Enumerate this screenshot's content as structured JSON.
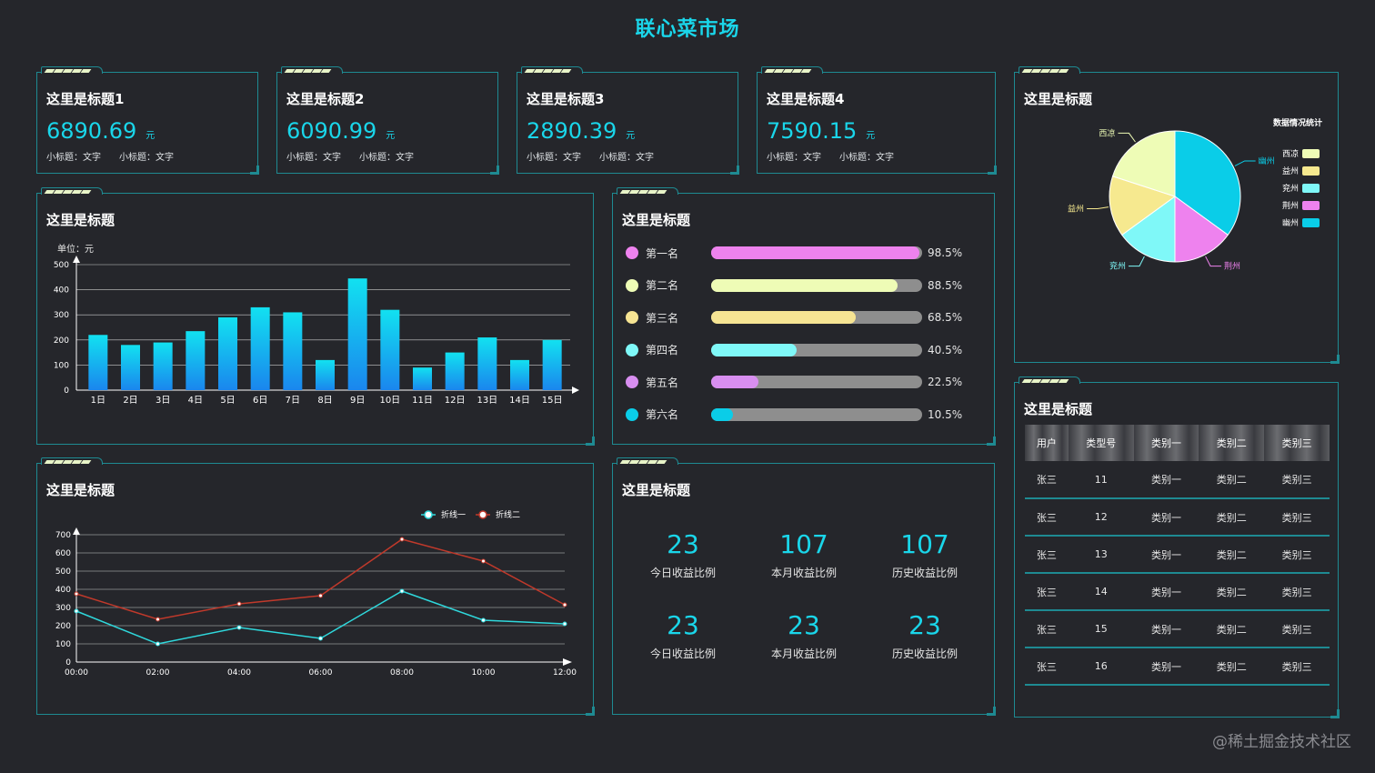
{
  "header": {
    "title": "联心菜市场"
  },
  "stats": [
    {
      "title": "这里是标题1",
      "value": "6890.69",
      "unit": "元",
      "sub1": "小标题：文字",
      "sub2": "小标题：文字"
    },
    {
      "title": "这里是标题2",
      "value": "6090.99",
      "unit": "元",
      "sub1": "小标题：文字",
      "sub2": "小标题：文字"
    },
    {
      "title": "这里是标题3",
      "value": "2890.39",
      "unit": "元",
      "sub1": "小标题：文字",
      "sub2": "小标题：文字"
    },
    {
      "title": "这里是标题4",
      "value": "7590.15",
      "unit": "元",
      "sub1": "小标题：文字",
      "sub2": "小标题：文字"
    }
  ],
  "pie_panel": {
    "title": "这里是标题"
  },
  "bar_panel": {
    "title": "这里是标题"
  },
  "rank_panel": {
    "title": "这里是标题",
    "items": [
      {
        "label": "第一名",
        "pct": "98.5%",
        "value": 98.5,
        "color": "#ee82ee"
      },
      {
        "label": "第二名",
        "pct": "88.5%",
        "value": 88.5,
        "color": "#eefcb6"
      },
      {
        "label": "第三名",
        "pct": "68.5%",
        "value": 68.5,
        "color": "#f6e493"
      },
      {
        "label": "第四名",
        "pct": "40.5%",
        "value": 40.5,
        "color": "#7ff8f8"
      },
      {
        "label": "第五名",
        "pct": "22.5%",
        "value": 22.5,
        "color": "#d88ef0"
      },
      {
        "label": "第六名",
        "pct": "10.5%",
        "value": 10.5,
        "color": "#0acde8"
      }
    ]
  },
  "line_panel": {
    "title": "这里是标题"
  },
  "ratio_panel": {
    "title": "这里是标题",
    "cells": [
      {
        "value": "23",
        "label": "今日收益比例"
      },
      {
        "value": "107",
        "label": "本月收益比例"
      },
      {
        "value": "107",
        "label": "历史收益比例"
      },
      {
        "value": "23",
        "label": "今日收益比例"
      },
      {
        "value": "23",
        "label": "本月收益比例"
      },
      {
        "value": "23",
        "label": "历史收益比例"
      }
    ]
  },
  "table_panel": {
    "title": "这里是标题",
    "headers": [
      "用户",
      "类型号",
      "类别一",
      "类别二",
      "类别三"
    ],
    "rows": [
      [
        "张三",
        "11",
        "类别一",
        "类别二",
        "类别三"
      ],
      [
        "张三",
        "12",
        "类别一",
        "类别二",
        "类别三"
      ],
      [
        "张三",
        "13",
        "类别一",
        "类别二",
        "类别三"
      ],
      [
        "张三",
        "14",
        "类别一",
        "类别二",
        "类别三"
      ],
      [
        "张三",
        "15",
        "类别一",
        "类别二",
        "类别三"
      ],
      [
        "张三",
        "16",
        "类别一",
        "类别二",
        "类别三"
      ]
    ]
  },
  "watermark": "@稀土掘金技术社区",
  "chart_data": [
    {
      "type": "bar",
      "unit_label": "单位：元",
      "categories": [
        "1日",
        "2日",
        "3日",
        "4日",
        "5日",
        "6日",
        "7日",
        "8日",
        "9日",
        "10日",
        "11日",
        "12日",
        "13日",
        "14日",
        "15日"
      ],
      "values": [
        220,
        180,
        190,
        235,
        290,
        330,
        310,
        120,
        445,
        320,
        90,
        150,
        210,
        120,
        200
      ],
      "yticks": [
        0,
        100,
        200,
        300,
        400,
        500
      ],
      "ylim": [
        0,
        500
      ]
    },
    {
      "type": "pie",
      "legend_title": "数据情况统计",
      "labels": [
        "西凉",
        "益州",
        "兖州",
        "荆州",
        "幽州"
      ],
      "values": [
        20,
        15,
        15,
        15,
        35
      ],
      "colors": [
        "#eefcb6",
        "#f6e98f",
        "#7ff8f8",
        "#ee82ee",
        "#0acde8"
      ]
    },
    {
      "type": "line",
      "x": [
        "00:00",
        "02:00",
        "04:00",
        "06:00",
        "08:00",
        "10:00",
        "12:00"
      ],
      "yticks": [
        0,
        100,
        200,
        300,
        400,
        500,
        600,
        700
      ],
      "ylim": [
        0,
        700
      ],
      "series": [
        {
          "name": "折线一",
          "color": "#2fd8dc",
          "values": [
            280,
            100,
            190,
            130,
            390,
            230,
            210
          ]
        },
        {
          "name": "折线二",
          "color": "#c0392b",
          "values": [
            375,
            235,
            320,
            365,
            675,
            555,
            315
          ]
        }
      ]
    }
  ]
}
